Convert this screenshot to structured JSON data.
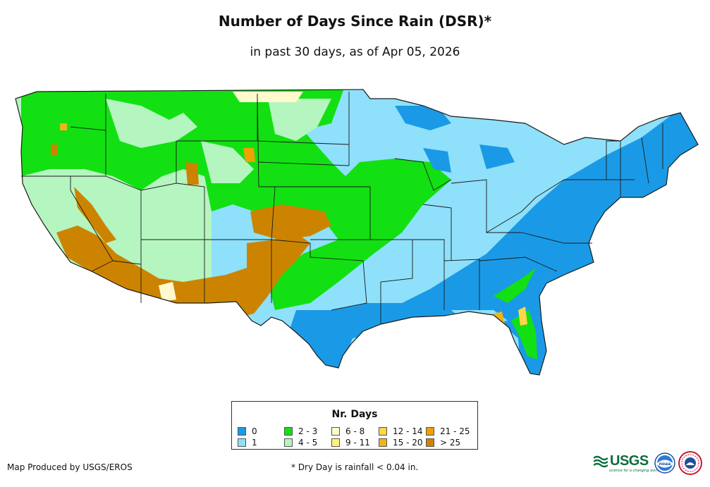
{
  "header": {
    "title": "Number of Days Since Rain (DSR)*",
    "subtitle": "in past 30 days, as of Apr 05, 2026"
  },
  "legend": {
    "title": "Nr. Days",
    "items": [
      {
        "label": "0",
        "color": "#1a9ae6"
      },
      {
        "label": "1",
        "color": "#8fe0fa"
      },
      {
        "label": "2 - 3",
        "color": "#12e012"
      },
      {
        "label": "4 - 5",
        "color": "#b5f5c0"
      },
      {
        "label": "6 - 8",
        "color": "#fffacd"
      },
      {
        "label": "9 - 11",
        "color": "#fff27a"
      },
      {
        "label": "12 - 14",
        "color": "#ffd54a"
      },
      {
        "label": "15 - 20",
        "color": "#f0b419"
      },
      {
        "label": "21 - 25",
        "color": "#f0a000"
      },
      {
        "label": "> 25",
        "color": "#cc8400"
      }
    ]
  },
  "footer": {
    "credit": "Map Produced by USGS/EROS",
    "note": "* Dry Day is rainfall < 0.04 in."
  },
  "logos": {
    "usgs": "USGS",
    "usgs_tagline": "science for a changing world",
    "noaa": "noaa"
  },
  "colors": {
    "state_border": "#1a1a1a"
  }
}
